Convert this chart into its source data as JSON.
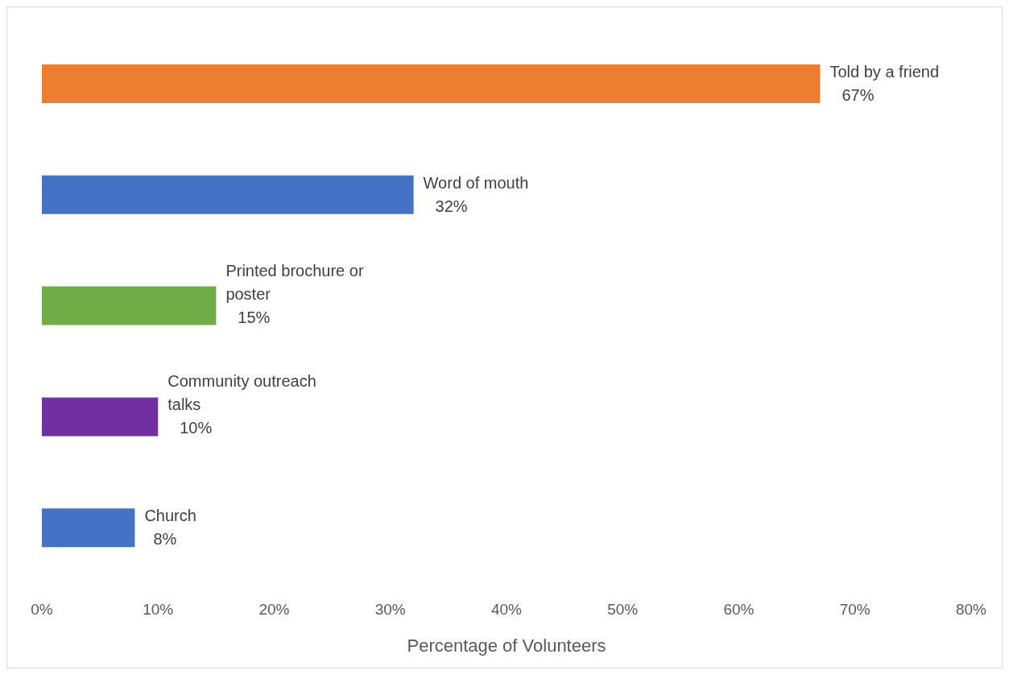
{
  "chart_data": {
    "type": "bar",
    "orientation": "horizontal",
    "xlabel": "Percentage of Volunteers",
    "categories": [
      "Told by a friend",
      "Word of mouth",
      "Printed brochure or poster",
      "Community outreach talks",
      "Church"
    ],
    "values": [
      67,
      32,
      15,
      10,
      8
    ],
    "colors": [
      "#ed7d31",
      "#4472c4",
      "#70ad47",
      "#7030a0",
      "#4472c4"
    ],
    "value_labels": [
      "67%",
      "32%",
      "15%",
      "10%",
      "8%"
    ],
    "xlim": [
      0,
      80
    ],
    "xticks": [
      {
        "value": 0,
        "label": "0%"
      },
      {
        "value": 10,
        "label": "10%"
      },
      {
        "value": 20,
        "label": "20%"
      },
      {
        "value": 30,
        "label": "30%"
      },
      {
        "value": 40,
        "label": "40%"
      },
      {
        "value": 50,
        "label": "50%"
      },
      {
        "value": 60,
        "label": "60%"
      },
      {
        "value": 70,
        "label": "70%"
      },
      {
        "value": 80,
        "label": "80%"
      }
    ],
    "tick_labels": "x"
  }
}
